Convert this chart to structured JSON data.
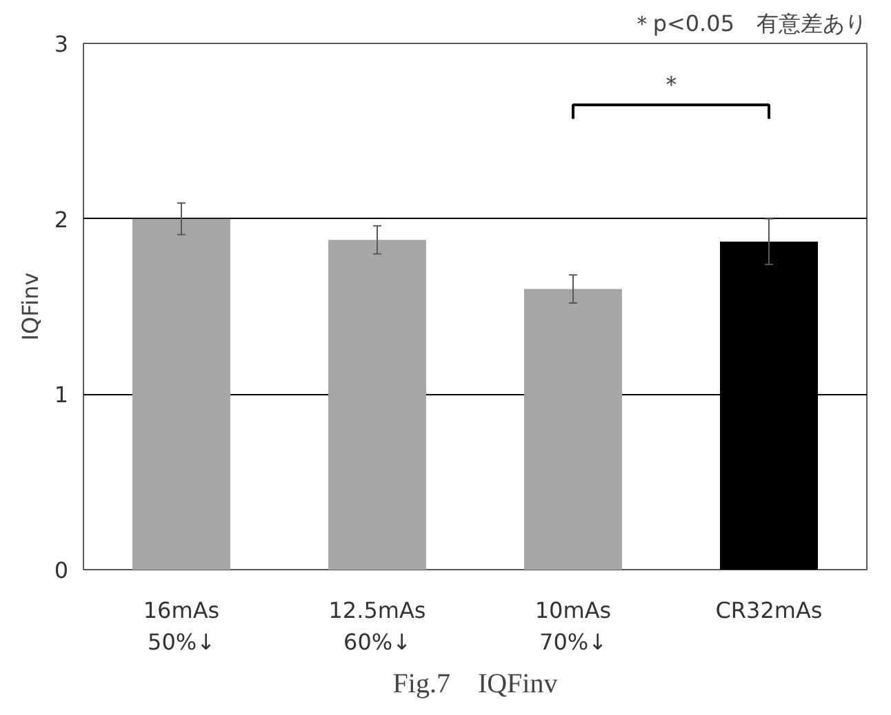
{
  "chart_data": {
    "type": "bar",
    "title": "Fig.7　IQFinv",
    "ylabel": "IQFinv",
    "categories": [
      "16mAs\n50%↓",
      "12.5mAs\n60%↓",
      "10mAs\n70%↓",
      "CR32mAs"
    ],
    "values": [
      2.0,
      1.88,
      1.6,
      1.87
    ],
    "colors": [
      "#a6a6a6",
      "#a6a6a6",
      "#a6a6a6",
      "#000000"
    ],
    "errors": [
      0.09,
      0.08,
      0.08,
      0.13
    ],
    "ylim": [
      0,
      3
    ],
    "yticks": [
      0,
      1,
      2,
      3
    ],
    "grid": "y",
    "annotations": [
      "＊p<0.05　有意差あり",
      "＊"
    ]
  }
}
